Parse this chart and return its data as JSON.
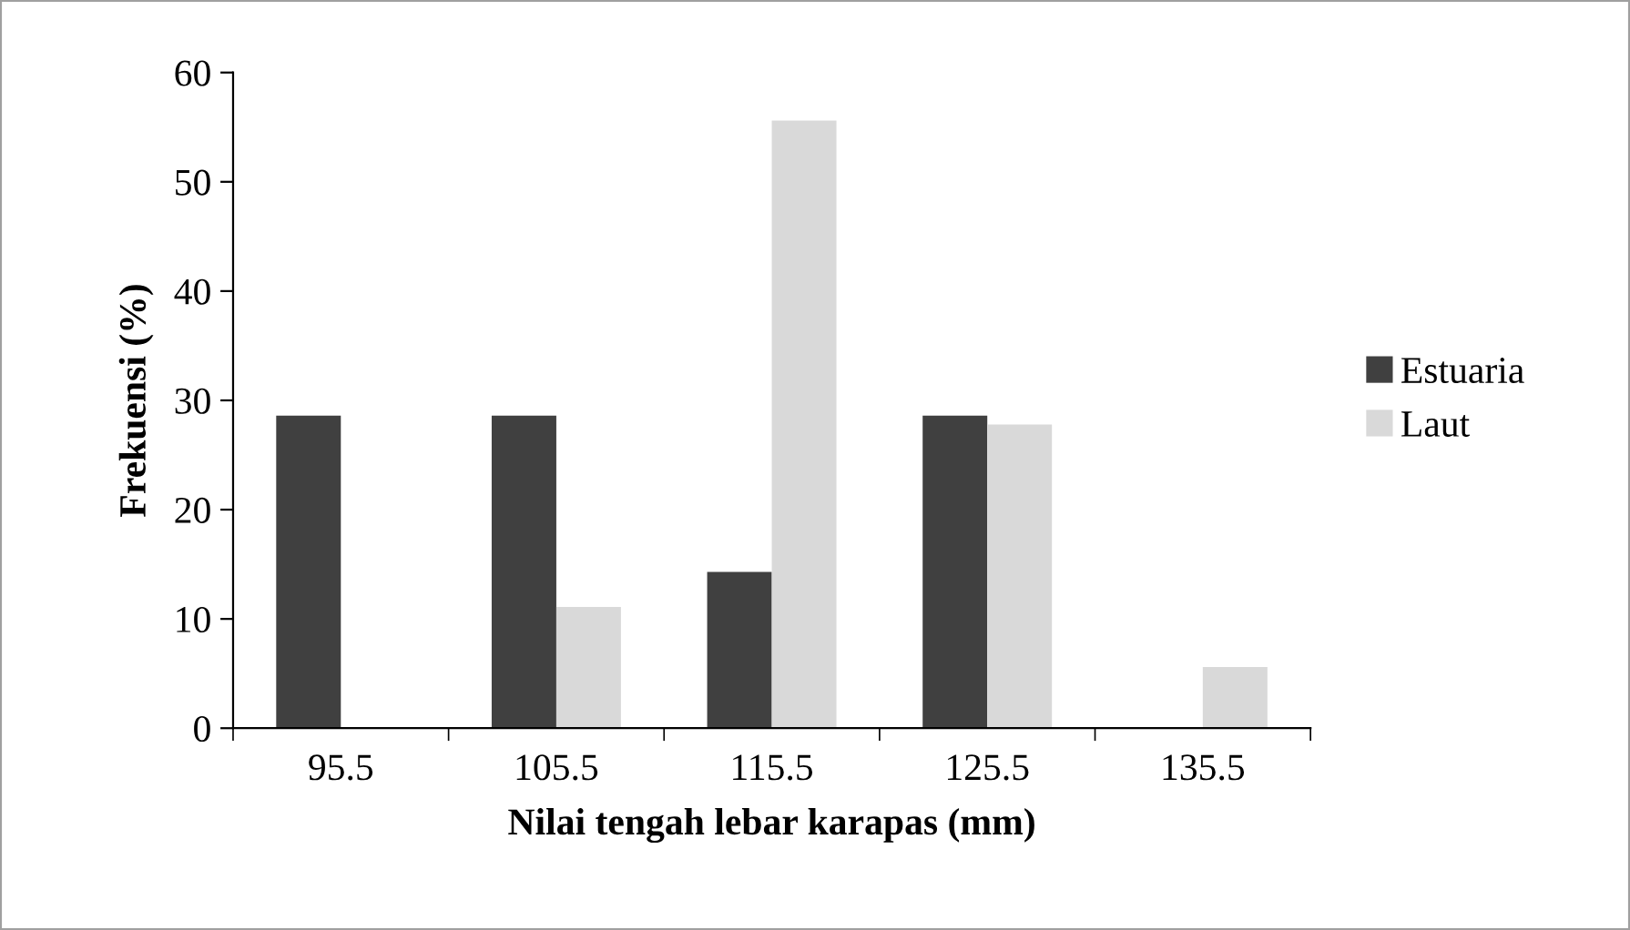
{
  "chart_data": {
    "type": "bar",
    "xlabel": "Nilai tengah lebar karapas (mm)",
    "ylabel": "Frekuensi (%)",
    "categories": [
      "95.5",
      "105.5",
      "115.5",
      "125.5",
      "135.5"
    ],
    "series": [
      {
        "name": "Estuaria",
        "color": "#404040",
        "values": [
          28.6,
          28.6,
          14.3,
          28.6,
          0
        ]
      },
      {
        "name": "Laut",
        "color": "#d9d9d9",
        "values": [
          0,
          11.1,
          55.6,
          27.8,
          5.6
        ]
      }
    ],
    "ylim": [
      0,
      60
    ],
    "yticks": [
      0,
      10,
      20,
      30,
      40,
      50,
      60
    ],
    "grid": false,
    "legend": "right"
  }
}
